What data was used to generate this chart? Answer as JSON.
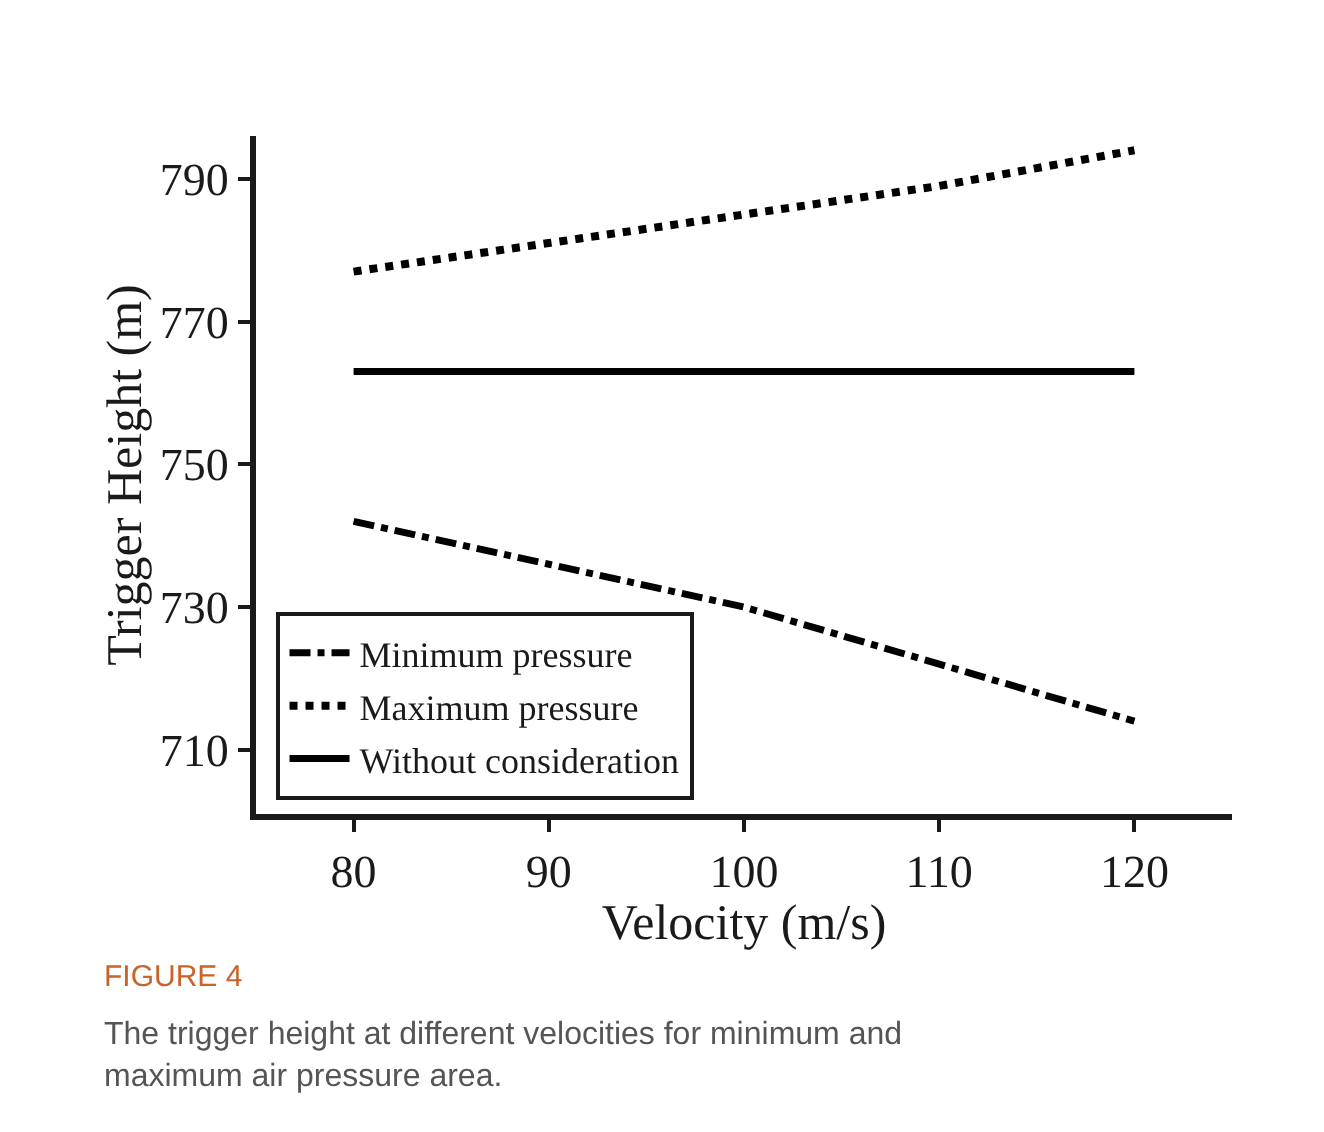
{
  "chart_data": {
    "type": "line",
    "xlabel": "Velocity (m/s)",
    "ylabel": "Trigger Height (m)",
    "x": [
      80,
      90,
      100,
      110,
      120
    ],
    "series": [
      {
        "name": "Minimum pressure",
        "color": "#000000",
        "line_style": "dashdot",
        "values": [
          742,
          736,
          730,
          722,
          714
        ]
      },
      {
        "name": "Maximum pressure",
        "color": "#000000",
        "line_style": "dotted",
        "values": [
          777,
          781,
          785,
          789,
          794
        ]
      },
      {
        "name": "Without consideration",
        "color": "#000000",
        "line_style": "solid",
        "values": [
          763,
          763,
          763,
          763,
          763
        ]
      }
    ],
    "xlim": [
      75,
      125
    ],
    "xticks": [
      80,
      90,
      100,
      110,
      120
    ],
    "ylim": [
      701,
      796
    ],
    "yticks": [
      710,
      730,
      750,
      770,
      790
    ],
    "legend": "bottom left",
    "marker": "none",
    "annotations": [
      "FIGURE 4",
      "The trigger height at different velocities for minimum and maximum air pressure area."
    ]
  }
}
